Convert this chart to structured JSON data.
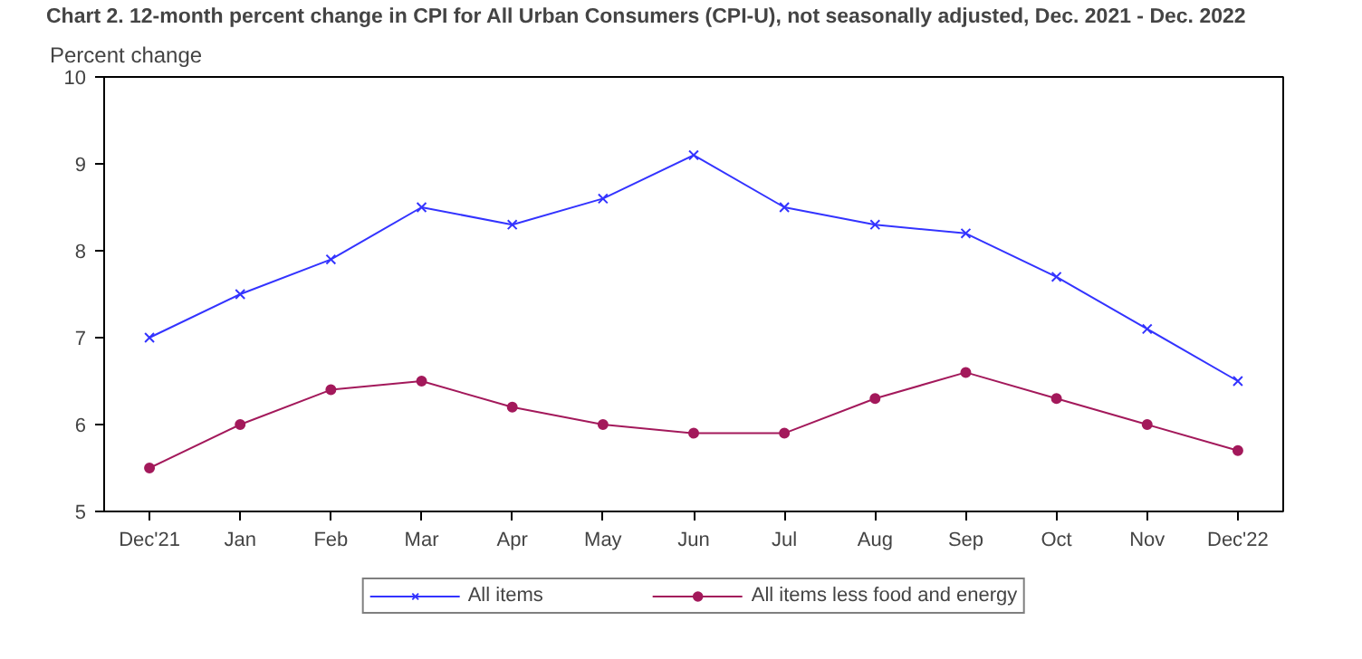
{
  "chart_data": {
    "type": "line",
    "title": "Chart 2. 12-month percent change in CPI for All Urban Consumers (CPI-U), not seasonally adjusted, Dec. 2021 - Dec. 2022",
    "ylabel": "Percent change",
    "categories": [
      "Dec'21",
      "Jan",
      "Feb",
      "Mar",
      "Apr",
      "May",
      "Jun",
      "Jul",
      "Aug",
      "Sep",
      "Oct",
      "Nov",
      "Dec'22"
    ],
    "series": [
      {
        "name": "All items",
        "color": "#3333ff",
        "marker": "cross",
        "values": [
          7.0,
          7.5,
          7.9,
          8.5,
          8.3,
          8.6,
          9.1,
          8.5,
          8.3,
          8.2,
          7.7,
          7.1,
          6.5
        ]
      },
      {
        "name": "All items less food and energy",
        "color": "#a3195b",
        "marker": "circle",
        "values": [
          5.5,
          6.0,
          6.4,
          6.5,
          6.2,
          6.0,
          5.9,
          5.9,
          6.3,
          6.6,
          6.3,
          6.0,
          5.7
        ]
      }
    ],
    "ylim": [
      5,
      10
    ],
    "yticks": [
      5,
      6,
      7,
      8,
      9,
      10
    ],
    "grid": false,
    "legend": "bottom",
    "line_style": "solid"
  }
}
